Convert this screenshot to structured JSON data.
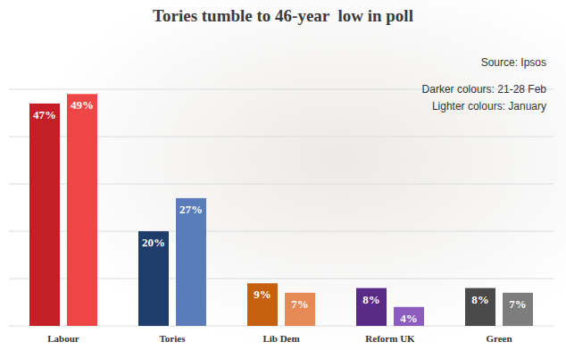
{
  "chart_data": {
    "type": "bar",
    "title": "Tories tumble to 46-year  low in poll",
    "annotations": [
      "Source: Ipsos"
    ],
    "categories": [
      "Labour",
      "Tories",
      "Lib Dem",
      "Reform UK",
      "Green"
    ],
    "series": [
      {
        "name": "Darker colours: 21-28 Feb",
        "values": [
          47,
          20,
          9,
          8,
          8
        ],
        "value_labels": [
          "47%",
          "20%",
          "9%",
          "8%",
          "8%"
        ],
        "colors": [
          "#c41e26",
          "#1f3d6b",
          "#c4600e",
          "#5a2a87",
          "#4a4a4a"
        ]
      },
      {
        "name": "Lighter colours: January",
        "values": [
          49,
          27,
          7,
          4,
          7
        ],
        "value_labels": [
          "49%",
          "27%",
          "7%",
          "4%",
          "7%"
        ],
        "colors": [
          "#ee4646",
          "#5b7cbb",
          "#e58a55",
          "#8c5cbf",
          "#7d7d7d"
        ]
      }
    ],
    "ylim": [
      0,
      50
    ],
    "yticks": [
      0,
      10,
      20,
      30,
      40,
      50
    ],
    "grid": true,
    "data_labels": true,
    "tick_labels": "x"
  }
}
